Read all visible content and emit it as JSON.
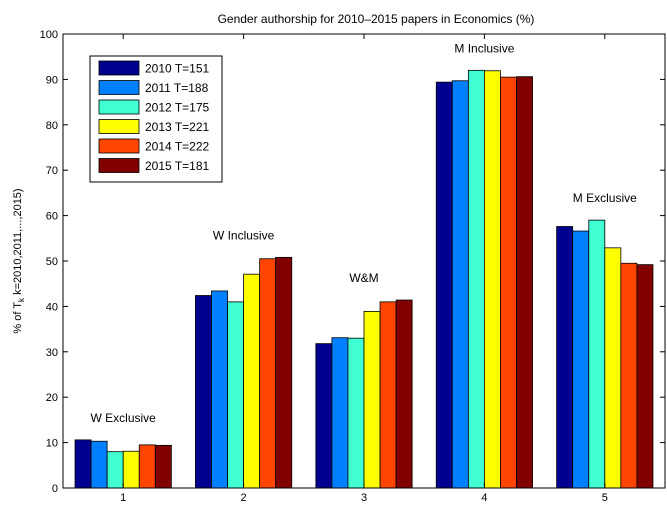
{
  "chart_data": {
    "type": "bar",
    "title": "Gender authorship for 2010–2015 papers in Economics (%)",
    "xlabel": "",
    "ylabel": {
      "prefix": "% of T",
      "subscript": "k",
      "suffix": " k=2010,2011,...,2015)"
    },
    "ylim": [
      0,
      100
    ],
    "yticks": [
      0,
      10,
      20,
      30,
      40,
      50,
      60,
      70,
      80,
      90,
      100
    ],
    "categories": [
      "1",
      "2",
      "3",
      "4",
      "5"
    ],
    "grid": false,
    "legend_position": "top-left",
    "annotations": [
      {
        "category": "1",
        "text": "W Exclusive"
      },
      {
        "category": "2",
        "text": "W Inclusive"
      },
      {
        "category": "3",
        "text": "W&M"
      },
      {
        "category": "4",
        "text": "M Inclusive"
      },
      {
        "category": "5",
        "text": "M Exclusive"
      }
    ],
    "series": [
      {
        "name": "2010 T=151",
        "color": "#00008f",
        "values": [
          10.6,
          42.4,
          31.8,
          89.4,
          57.6
        ]
      },
      {
        "name": "2011 T=188",
        "color": "#0080ff",
        "values": [
          10.3,
          43.4,
          33.1,
          89.7,
          56.6
        ]
      },
      {
        "name": "2012 T=175",
        "color": "#40ffd0",
        "values": [
          8.0,
          41.0,
          33.0,
          92.0,
          59.0
        ]
      },
      {
        "name": "2013 T=221",
        "color": "#ffff00",
        "values": [
          8.1,
          47.1,
          38.9,
          91.9,
          52.9
        ]
      },
      {
        "name": "2014 T=222",
        "color": "#ff4500",
        "values": [
          9.5,
          50.5,
          41.0,
          90.5,
          49.5
        ]
      },
      {
        "name": "2015 T=181",
        "color": "#800000",
        "values": [
          9.4,
          50.8,
          41.4,
          90.6,
          49.2
        ]
      }
    ]
  }
}
